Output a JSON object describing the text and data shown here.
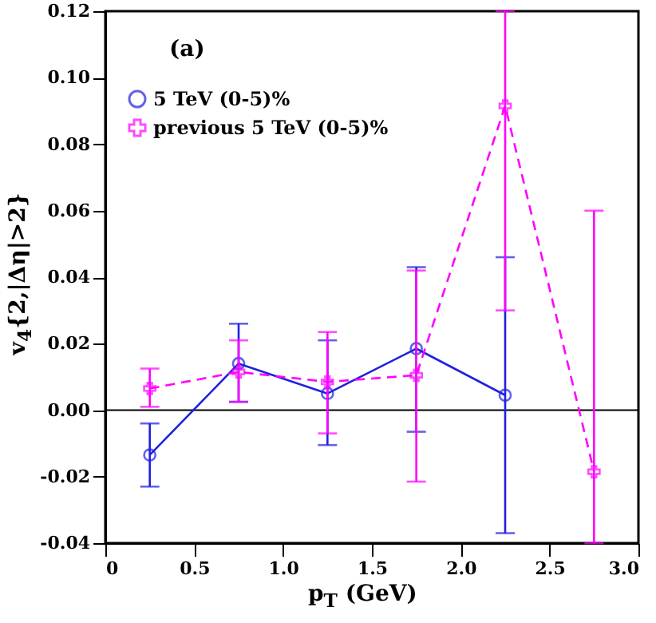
{
  "chart_data": {
    "type": "line",
    "xlabel": "p$_{T}$ (GeV)",
    "ylabel": "v$_{4}${2,|Δη|>2}",
    "annotations": [
      "(a)"
    ],
    "x": [
      0.25,
      0.75,
      1.25,
      1.75,
      2.25,
      2.75
    ],
    "xlim": [
      0,
      3
    ],
    "xticks": [
      0,
      {
        "value": 0.5,
        "label": "0.5"
      },
      {
        "value": 1,
        "label": "1.0"
      },
      {
        "value": 1.5,
        "label": "1.5"
      },
      {
        "value": 2,
        "label": "2.0"
      },
      {
        "value": 2.5,
        "label": "2.5"
      },
      {
        "value": 3,
        "label": "3.0"
      }
    ],
    "ylim": [
      -0.04,
      0.12
    ],
    "yticks": [
      {
        "value": -0.04,
        "label": "-0.04"
      },
      {
        "value": -0.02,
        "label": "-0.02"
      },
      {
        "value": 0,
        "label": "0.00"
      },
      {
        "value": 0.02,
        "label": "0.02"
      },
      {
        "value": 0.04,
        "label": "0.04"
      },
      {
        "value": 0.06,
        "label": "0.06"
      },
      {
        "value": 0.08,
        "label": "0.08"
      },
      {
        "value": 0.1,
        "label": "0.10"
      },
      {
        "value": 0.12,
        "label": "0.12"
      }
    ],
    "series": [
      {
        "name": "5 TeV (0-5)%",
        "color": "#2020e0",
        "marker": "circle",
        "line_style": "solid",
        "values": [
          -0.0135,
          0.014,
          0.005,
          0.0185,
          0.0045,
          null
        ],
        "errors": [
          [
            -0.023,
            -0.004
          ],
          [
            0.0025,
            0.026
          ],
          [
            -0.0105,
            0.021
          ],
          [
            -0.0065,
            0.043
          ],
          [
            -0.037,
            0.046
          ],
          null
        ]
      },
      {
        "name": "previous 5 TeV (0-5)%",
        "color": "#ff00ff",
        "marker": "cross",
        "line_style": "dashed",
        "values": [
          0.0065,
          0.0115,
          0.0085,
          0.0105,
          0.0915,
          -0.0185
        ],
        "errors": [
          [
            0.001,
            0.0125
          ],
          [
            0.0025,
            0.021
          ],
          [
            -0.007,
            0.0235
          ],
          [
            -0.0215,
            0.042
          ],
          [
            0.03,
            0.12
          ],
          [
            -0.04,
            0.06
          ]
        ]
      }
    ],
    "ref_lines": [
      {
        "axis": "y",
        "value": 0,
        "color": "#000000"
      }
    ],
    "grid": false,
    "legend": "top left"
  }
}
